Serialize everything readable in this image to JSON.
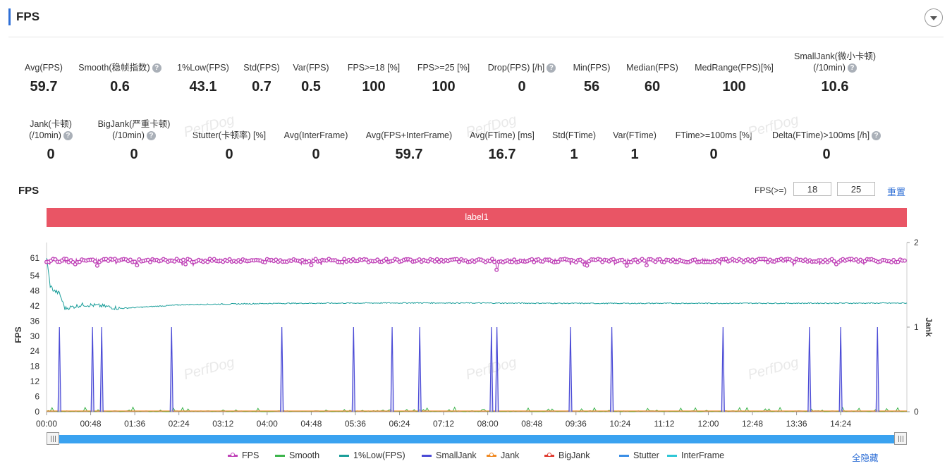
{
  "header": {
    "title": "FPS"
  },
  "stats_row1": [
    {
      "label": "Avg(FPS)",
      "value": "59.7",
      "help": false
    },
    {
      "label": "Smooth(稳帧指数)",
      "value": "0.6",
      "help": true
    },
    {
      "label": "1%Low(FPS)",
      "value": "43.1",
      "help": false
    },
    {
      "label": "Std(FPS)",
      "value": "0.7",
      "help": false
    },
    {
      "label": "Var(FPS)",
      "value": "0.5",
      "help": false
    },
    {
      "label": "FPS>=18 [%]",
      "value": "100",
      "help": false
    },
    {
      "label": "FPS>=25 [%]",
      "value": "100",
      "help": false
    },
    {
      "label": "Drop(FPS) [/h]",
      "value": "0",
      "help": true
    },
    {
      "label": "Min(FPS)",
      "value": "56",
      "help": false
    },
    {
      "label": "Median(FPS)",
      "value": "60",
      "help": false
    },
    {
      "label": "MedRange(FPS)[%]",
      "value": "100",
      "help": false
    },
    {
      "label": "SmallJank(微小卡顿)",
      "label2": "(/10min)",
      "value": "10.6",
      "help": true
    }
  ],
  "stats_row2": [
    {
      "label": "Jank(卡顿)",
      "label2": "(/10min)",
      "value": "0",
      "help": true
    },
    {
      "label": "BigJank(严重卡顿)",
      "label2": "(/10min)",
      "value": "0",
      "help": true
    },
    {
      "label": "Stutter(卡顿率) [%]",
      "value": "0",
      "help": false
    },
    {
      "label": "Avg(InterFrame)",
      "value": "0",
      "help": false
    },
    {
      "label": "Avg(FPS+InterFrame)",
      "value": "59.7",
      "help": false
    },
    {
      "label": "Avg(FTime) [ms]",
      "value": "16.7",
      "help": false
    },
    {
      "label": "Std(FTime)",
      "value": "1",
      "help": false
    },
    {
      "label": "Var(FTime)",
      "value": "1",
      "help": false
    },
    {
      "label": "FTime>=100ms [%]",
      "value": "0",
      "help": false
    },
    {
      "label": "Delta(FTime)>100ms [/h]",
      "value": "0",
      "help": true
    }
  ],
  "watermark": "PerfDog",
  "chart": {
    "title": "FPS",
    "threshold_label": "FPS(>=)",
    "threshold1": "18",
    "threshold2": "25",
    "reset_label": "重置",
    "label_bar": "label1",
    "hide_all_label": "全隐藏"
  },
  "chart_data": {
    "type": "line",
    "ylabel": "FPS",
    "y2label": "Jank",
    "ylim": [
      0,
      61
    ],
    "y2lim": [
      0,
      2
    ],
    "yticks": [
      "0",
      "6",
      "12",
      "18",
      "24",
      "30",
      "36",
      "42",
      "48",
      "54",
      "61"
    ],
    "y2ticks": [
      "0",
      "1",
      "2"
    ],
    "xticks": [
      "00:00",
      "00:48",
      "01:36",
      "02:24",
      "03:12",
      "04:00",
      "04:48",
      "05:36",
      "06:24",
      "07:12",
      "08:00",
      "08:48",
      "09:36",
      "10:24",
      "11:12",
      "12:00",
      "12:48",
      "13:36",
      "14:24"
    ],
    "x_range_seconds": [
      0,
      936
    ],
    "series": [
      {
        "name": "FPS",
        "color": "#c044b8",
        "typical": 60,
        "min": 56
      },
      {
        "name": "Smooth",
        "color": "#3cb44b"
      },
      {
        "name": "1%Low(FPS)",
        "color": "#1a9e9a",
        "points": [
          [
            0,
            61
          ],
          [
            4,
            50
          ],
          [
            8,
            48
          ],
          [
            14,
            47
          ],
          [
            20,
            41
          ],
          [
            40,
            42.5
          ],
          [
            60,
            42
          ],
          [
            80,
            41
          ],
          [
            150,
            42.5
          ],
          [
            250,
            43
          ],
          [
            400,
            43.2
          ],
          [
            600,
            43
          ],
          [
            936,
            43.1
          ]
        ]
      },
      {
        "name": "SmallJank",
        "color": "#4b4bd6",
        "spikes_seconds": [
          14,
          50,
          60,
          136,
          256,
          334,
          376,
          406,
          484,
          490,
          570,
          615,
          736,
          830,
          864,
          904
        ]
      },
      {
        "name": "Jank",
        "color": "#f08a24"
      },
      {
        "name": "BigJank",
        "color": "#e03c31"
      },
      {
        "name": "Stutter",
        "color": "#3a8ee6"
      },
      {
        "name": "InterFrame",
        "color": "#2ec7d6"
      }
    ]
  }
}
